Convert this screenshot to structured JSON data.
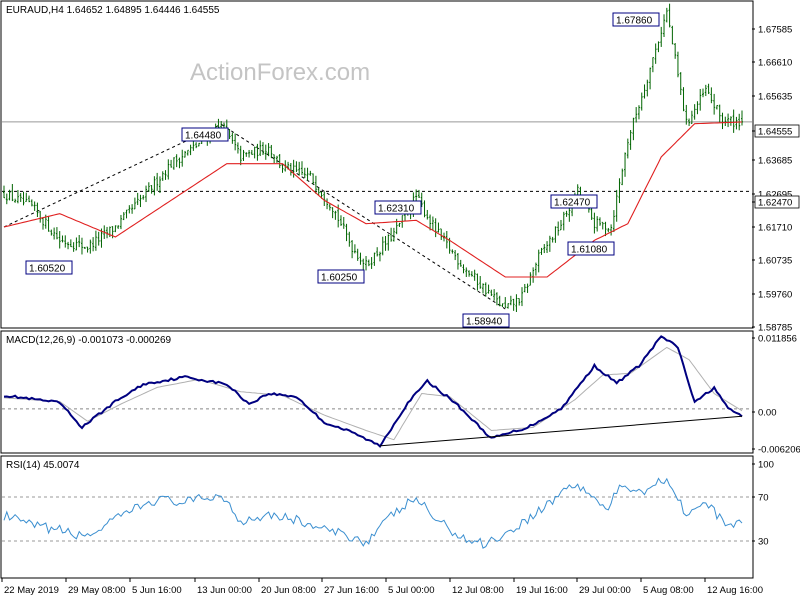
{
  "header": {
    "symbol_line": "EURAUD,H4  1.64652 1.64895 1.64446 1.64555",
    "watermark": "ActionForex.com"
  },
  "colors": {
    "candle": "#006400",
    "ma": "#e02020",
    "macd": "#000080",
    "signal": "#b0b0b0",
    "rsi": "#3b8fd0",
    "callout_border": "#000080"
  },
  "chart_data": [
    {
      "type": "candlestick",
      "panel": "price",
      "title": "EURAUD,H4",
      "ohlc_last": {
        "open": 1.64652,
        "high": 1.64895,
        "low": 1.64446,
        "close": 1.64555
      },
      "ylim": [
        1.584,
        1.6815
      ],
      "y_ticks": [
        "1.67585",
        "1.66610",
        "1.65635",
        "1.64555",
        "1.63685",
        "1.62695",
        "1.62470",
        "1.61710",
        "1.60735",
        "1.59760",
        "1.58785"
      ],
      "horizontal_lines": [
        {
          "value": 1.64555,
          "label": "1.64555",
          "style": "solid"
        },
        {
          "value": 1.6247,
          "label": "1.62470",
          "style": "dashed"
        }
      ],
      "callouts": [
        {
          "label": "1.67860",
          "value": 1.6786
        },
        {
          "label": "1.64480",
          "value": 1.6448
        },
        {
          "label": "1.62310",
          "value": 1.6231
        },
        {
          "label": "1.62470",
          "value": 1.6247
        },
        {
          "label": "1.60520",
          "value": 1.6052
        },
        {
          "label": "1.60250",
          "value": 1.6025
        },
        {
          "label": "1.61080",
          "value": 1.6108
        },
        {
          "label": "1.58940",
          "value": 1.5894
        }
      ],
      "close_path": [
        [
          0,
          1.624
        ],
        [
          10,
          1.62
        ],
        [
          20,
          1.61
        ],
        [
          30,
          1.608
        ],
        [
          40,
          1.614
        ],
        [
          50,
          1.623
        ],
        [
          60,
          1.633
        ],
        [
          70,
          1.639
        ],
        [
          78,
          1.6448
        ],
        [
          85,
          1.635
        ],
        [
          95,
          1.638
        ],
        [
          100,
          1.632
        ],
        [
          110,
          1.629
        ],
        [
          118,
          1.62
        ],
        [
          125,
          1.608
        ],
        [
          130,
          1.6025
        ],
        [
          140,
          1.612
        ],
        [
          148,
          1.6231
        ],
        [
          155,
          1.613
        ],
        [
          165,
          1.602
        ],
        [
          172,
          1.596
        ],
        [
          180,
          1.5894
        ],
        [
          186,
          1.593
        ],
        [
          192,
          1.605
        ],
        [
          200,
          1.615
        ],
        [
          206,
          1.6247
        ],
        [
          212,
          1.615
        ],
        [
          218,
          1.614
        ],
        [
          224,
          1.64
        ],
        [
          230,
          1.656
        ],
        [
          238,
          1.6786
        ],
        [
          245,
          1.645
        ],
        [
          252,
          1.655
        ],
        [
          258,
          1.646
        ],
        [
          265,
          1.6455
        ]
      ],
      "moving_average_path": [
        [
          0,
          1.614
        ],
        [
          20,
          1.618
        ],
        [
          40,
          1.611
        ],
        [
          60,
          1.622
        ],
        [
          80,
          1.633
        ],
        [
          100,
          1.633
        ],
        [
          115,
          1.622
        ],
        [
          130,
          1.615
        ],
        [
          148,
          1.616
        ],
        [
          160,
          1.61
        ],
        [
          180,
          1.599
        ],
        [
          195,
          1.599
        ],
        [
          212,
          1.61
        ],
        [
          224,
          1.615
        ],
        [
          236,
          1.635
        ],
        [
          248,
          1.645
        ],
        [
          265,
          1.6455
        ]
      ]
    },
    {
      "type": "line",
      "panel": "macd",
      "title": "MACD(12,26,9) -0.001073 -0.000269",
      "ylim": [
        -0.007,
        0.0125
      ],
      "y_ticks": [
        "0.011856",
        "0.00",
        "-0.006206"
      ],
      "macd_path": [
        [
          0,
          0.0022
        ],
        [
          20,
          0.001
        ],
        [
          28,
          -0.003
        ],
        [
          40,
          0.0012
        ],
        [
          50,
          0.004
        ],
        [
          65,
          0.0052
        ],
        [
          80,
          0.004
        ],
        [
          88,
          0.0008
        ],
        [
          95,
          0.0025
        ],
        [
          105,
          0.002
        ],
        [
          115,
          -0.0022
        ],
        [
          125,
          -0.0038
        ],
        [
          135,
          -0.006
        ],
        [
          145,
          0.001
        ],
        [
          152,
          0.0045
        ],
        [
          162,
          0.001
        ],
        [
          175,
          -0.0048
        ],
        [
          188,
          -0.003
        ],
        [
          200,
          0.0
        ],
        [
          212,
          0.007
        ],
        [
          220,
          0.0042
        ],
        [
          228,
          0.007
        ],
        [
          236,
          0.0118
        ],
        [
          242,
          0.01
        ],
        [
          248,
          0.001
        ],
        [
          255,
          0.0035
        ],
        [
          260,
          0.0
        ],
        [
          265,
          -0.0011
        ]
      ],
      "signal_path": [
        [
          0,
          0.0018
        ],
        [
          20,
          0.0012
        ],
        [
          30,
          -0.002
        ],
        [
          42,
          0.0008
        ],
        [
          55,
          0.0035
        ],
        [
          70,
          0.0048
        ],
        [
          85,
          0.0028
        ],
        [
          100,
          0.0022
        ],
        [
          115,
          -0.001
        ],
        [
          130,
          -0.0035
        ],
        [
          140,
          -0.005
        ],
        [
          150,
          0.0025
        ],
        [
          160,
          0.002
        ],
        [
          175,
          -0.0035
        ],
        [
          190,
          -0.003
        ],
        [
          205,
          0.0015
        ],
        [
          215,
          0.0055
        ],
        [
          225,
          0.0058
        ],
        [
          238,
          0.01
        ],
        [
          246,
          0.008
        ],
        [
          255,
          0.0025
        ],
        [
          265,
          -0.0003
        ]
      ],
      "trend_line": [
        [
          135,
          -0.006
        ],
        [
          265,
          -0.0012
        ]
      ]
    },
    {
      "type": "line",
      "panel": "rsi",
      "title": "RSI(14) 45.0074",
      "ylim": [
        0,
        100
      ],
      "y_ticks": [
        "100",
        "70",
        "30"
      ],
      "levels": [
        70,
        30
      ],
      "path": [
        [
          0,
          53
        ],
        [
          10,
          44
        ],
        [
          20,
          40
        ],
        [
          28,
          34
        ],
        [
          35,
          41
        ],
        [
          45,
          57
        ],
        [
          55,
          68
        ],
        [
          65,
          65
        ],
        [
          78,
          72
        ],
        [
          85,
          48
        ],
        [
          95,
          55
        ],
        [
          105,
          49
        ],
        [
          115,
          40
        ],
        [
          125,
          34
        ],
        [
          130,
          29
        ],
        [
          140,
          55
        ],
        [
          148,
          69
        ],
        [
          155,
          50
        ],
        [
          165,
          32
        ],
        [
          172,
          28
        ],
        [
          180,
          36
        ],
        [
          188,
          50
        ],
        [
          196,
          65
        ],
        [
          204,
          82
        ],
        [
          210,
          74
        ],
        [
          216,
          58
        ],
        [
          222,
          80
        ],
        [
          230,
          76
        ],
        [
          238,
          88
        ],
        [
          245,
          55
        ],
        [
          252,
          64
        ],
        [
          258,
          48
        ],
        [
          265,
          45
        ]
      ]
    }
  ],
  "x_axis": {
    "labels": [
      "22 May 2019",
      "29 May 08:00",
      "5 Jun 16:00",
      "13 Jun 00:00",
      "20 Jun 08:00",
      "27 Jun 16:00",
      "5 Jul 00:00",
      "12 Jul 08:00",
      "19 Jul 16:00",
      "29 Jul 00:00",
      "5 Aug 08:00",
      "12 Aug 16:00"
    ]
  }
}
